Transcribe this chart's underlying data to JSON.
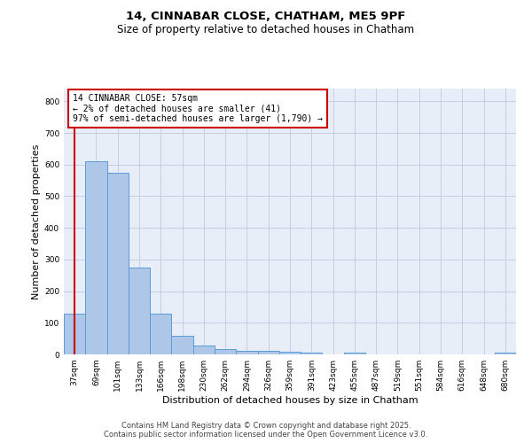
{
  "title1": "14, CINNABAR CLOSE, CHATHAM, ME5 9PF",
  "title2": "Size of property relative to detached houses in Chatham",
  "xlabel": "Distribution of detached houses by size in Chatham",
  "ylabel": "Number of detached properties",
  "categories": [
    "37sqm",
    "69sqm",
    "101sqm",
    "133sqm",
    "166sqm",
    "198sqm",
    "230sqm",
    "262sqm",
    "294sqm",
    "326sqm",
    "359sqm",
    "391sqm",
    "423sqm",
    "455sqm",
    "487sqm",
    "519sqm",
    "551sqm",
    "584sqm",
    "616sqm",
    "648sqm",
    "680sqm"
  ],
  "values": [
    130,
    610,
    575,
    275,
    130,
    60,
    28,
    18,
    10,
    10,
    8,
    6,
    0,
    5,
    0,
    0,
    0,
    0,
    0,
    0,
    5
  ],
  "bar_color": "#aec6e8",
  "bar_edge_color": "#5b9bd5",
  "grid_color": "#c0c8e0",
  "bg_color": "#e8eef8",
  "annotation_box_color": "#cc0000",
  "vline_color": "#cc0000",
  "annotation_text": "14 CINNABAR CLOSE: 57sqm\n← 2% of detached houses are smaller (41)\n97% of semi-detached houses are larger (1,790) →",
  "footer1": "Contains HM Land Registry data © Crown copyright and database right 2025.",
  "footer2": "Contains public sector information licensed under the Open Government Licence v3.0.",
  "ylim": [
    0,
    840
  ],
  "yticks": [
    0,
    100,
    200,
    300,
    400,
    500,
    600,
    700,
    800
  ],
  "title1_fontsize": 9.5,
  "title2_fontsize": 8.5,
  "ylabel_fontsize": 8,
  "xlabel_fontsize": 8,
  "tick_fontsize": 6.5,
  "footer_fontsize": 6,
  "ann_fontsize": 7
}
